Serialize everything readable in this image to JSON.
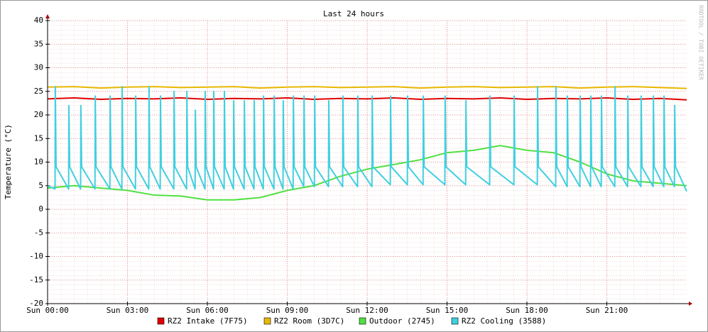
{
  "chart_data": {
    "type": "line",
    "title": "Last 24 hours",
    "y_label": "Temperature (°C)",
    "watermark": "RRDTOOL / TOBI OETIKER",
    "xlim": [
      0,
      24
    ],
    "ylim": [
      -20,
      40
    ],
    "grid": true,
    "xticks": [
      {
        "value": 0,
        "label": "Sun 00:00"
      },
      {
        "value": 3,
        "label": "Sun 03:00"
      },
      {
        "value": 6,
        "label": "Sun 06:00"
      },
      {
        "value": 9,
        "label": "Sun 09:00"
      },
      {
        "value": 12,
        "label": "Sun 12:00"
      },
      {
        "value": 15,
        "label": "Sun 15:00"
      },
      {
        "value": 18,
        "label": "Sun 18:00"
      },
      {
        "value": 21,
        "label": "Sun 21:00"
      }
    ],
    "yticks": [
      -20,
      -15,
      -10,
      -5,
      0,
      5,
      10,
      15,
      20,
      25,
      30,
      35,
      40
    ],
    "x": [
      0,
      1,
      2,
      3,
      4,
      5,
      6,
      7,
      8,
      9,
      10,
      11,
      12,
      13,
      14,
      15,
      16,
      17,
      18,
      19,
      20,
      21,
      22,
      23,
      24
    ],
    "series": [
      {
        "name": "RZ2 Intake (7F75)",
        "color": "#e00000",
        "values": [
          23.4,
          23.6,
          23.3,
          23.5,
          23.4,
          23.6,
          23.3,
          23.5,
          23.4,
          23.6,
          23.3,
          23.5,
          23.4,
          23.6,
          23.3,
          23.5,
          23.4,
          23.6,
          23.3,
          23.5,
          23.4,
          23.6,
          23.3,
          23.5,
          23.2
        ]
      },
      {
        "name": "RZ2 Room (3D7C)",
        "color": "#e8b800",
        "values": [
          25.9,
          26,
          25.7,
          25.9,
          26,
          25.8,
          25.9,
          26,
          25.7,
          25.9,
          26,
          25.8,
          25.9,
          26,
          25.7,
          25.9,
          26,
          25.8,
          25.9,
          26,
          25.7,
          25.9,
          26,
          25.8,
          25.6
        ]
      },
      {
        "name": "Outdoor (2745)",
        "color": "#50e040",
        "values": [
          4.5,
          5,
          4.5,
          4,
          3,
          2.8,
          2,
          2,
          2.5,
          4,
          5,
          7,
          8.5,
          9.5,
          10.5,
          12,
          12.5,
          13.5,
          12.5,
          12,
          10,
          7.5,
          6,
          5.5,
          5
        ]
      },
      {
        "name": "RZ2 Cooling (3588)",
        "color": "#40d0e0",
        "x": [
          0,
          0.28,
          0.29,
          0.32,
          0.79,
          0.8,
          0.83,
          1.24,
          1.25,
          1.28,
          1.78,
          1.79,
          1.82,
          2.34,
          2.35,
          2.38,
          2.79,
          2.8,
          2.83,
          3.3,
          3.31,
          3.34,
          3.8,
          3.81,
          3.84,
          4.23,
          4.24,
          4.27,
          4.74,
          4.75,
          4.78,
          5.22,
          5.23,
          5.26,
          5.54,
          5.55,
          5.58,
          5.91,
          5.92,
          5.95,
          6.23,
          6.24,
          6.27,
          6.63,
          6.64,
          6.67,
          6.98,
          6.99,
          7.02,
          7.38,
          7.39,
          7.42,
          7.75,
          7.76,
          7.79,
          8.1,
          8.11,
          8.14,
          8.5,
          8.51,
          8.54,
          8.84,
          8.85,
          8.88,
          9.22,
          9.23,
          9.26,
          9.62,
          9.63,
          9.66,
          10.02,
          10.03,
          10.06,
          10.55,
          10.56,
          10.59,
          11.08,
          11.09,
          11.12,
          11.64,
          11.65,
          11.68,
          12.18,
          12.19,
          12.22,
          12.87,
          12.88,
          12.91,
          13.51,
          13.52,
          13.55,
          14.1,
          14.11,
          14.14,
          14.92,
          14.93,
          14.96,
          15.7,
          15.71,
          15.74,
          16.6,
          16.61,
          16.64,
          17.51,
          17.52,
          17.55,
          18.39,
          18.4,
          18.43,
          19.08,
          19.09,
          19.12,
          19.51,
          19.52,
          19.55,
          19.99,
          20,
          20.03,
          20.39,
          20.4,
          20.43,
          20.79,
          20.8,
          20.83,
          21.3,
          21.31,
          21.34,
          21.78,
          21.79,
          21.82,
          22.28,
          22.29,
          22.32,
          22.74,
          22.75,
          22.78,
          23.14,
          23.15,
          23.18,
          23.54,
          23.55,
          23.58,
          24
        ],
        "values": [
          5,
          4.3,
          26,
          9,
          4.3,
          22,
          9,
          4.3,
          22,
          9,
          4.3,
          24,
          9,
          4.3,
          24,
          9,
          4.3,
          26,
          9,
          4.3,
          24,
          9,
          4.3,
          26,
          9,
          4.3,
          24,
          9,
          4.3,
          25,
          9,
          4.3,
          25,
          9,
          4.3,
          21,
          9,
          4.3,
          25,
          9,
          4.3,
          25,
          9,
          4.3,
          25,
          9,
          4.3,
          23,
          9,
          4.3,
          23,
          9,
          4.3,
          23,
          9,
          4.3,
          24,
          9,
          4.3,
          24,
          9,
          4.3,
          23,
          9,
          4.3,
          24,
          9,
          4.8,
          24,
          9,
          4.8,
          24,
          9,
          4.8,
          23,
          9,
          4.8,
          24,
          9,
          4.8,
          24,
          9,
          4.8,
          24,
          9,
          5.2,
          24,
          9,
          5.2,
          24,
          9,
          5.2,
          24,
          9,
          5.2,
          24,
          9,
          5.2,
          23,
          9,
          5.2,
          24,
          9,
          5.2,
          24,
          9,
          5.2,
          26,
          9,
          4.8,
          26,
          9,
          4.8,
          24,
          9,
          4.8,
          24,
          9,
          4.8,
          24,
          9,
          4.8,
          24,
          9,
          4.8,
          26,
          9,
          4.8,
          24,
          9,
          4.8,
          24,
          9,
          4.8,
          24,
          9,
          4.8,
          24,
          9,
          4.8,
          22,
          9,
          3.8
        ]
      }
    ]
  }
}
